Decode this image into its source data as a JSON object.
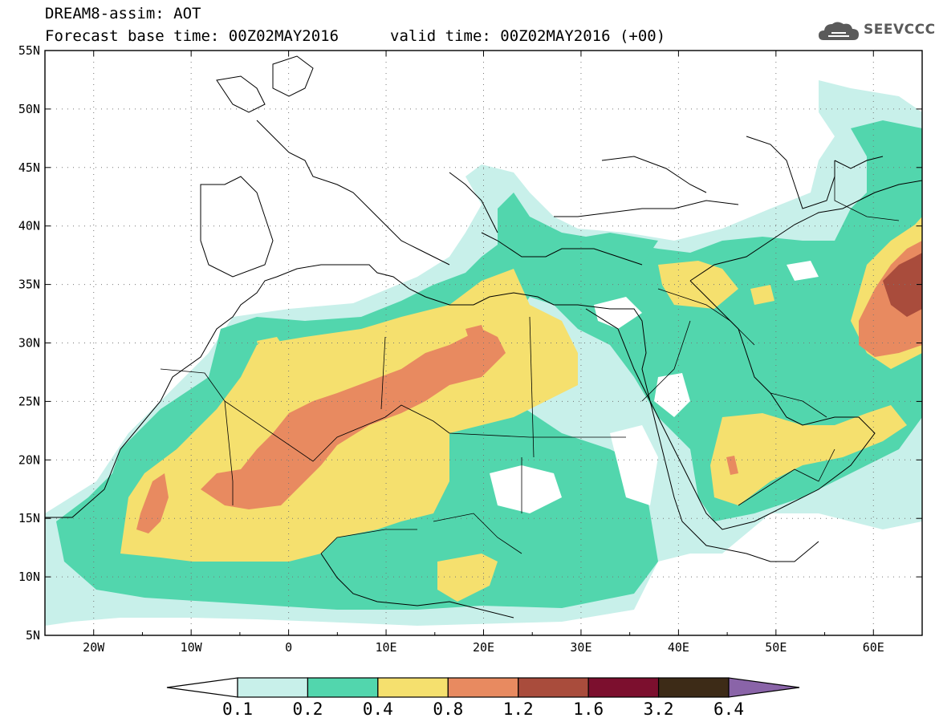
{
  "header": {
    "line1": "DREAM8-assim: AOT",
    "line2": "Forecast base time: 00Z02MAY2016",
    "line3": "valid time: 00Z02MAY2016 (+00)"
  },
  "logo": {
    "text": "SEEVCCC",
    "icon": "cloud-icon"
  },
  "map": {
    "lon_range": [
      -25,
      65
    ],
    "lat_range": [
      5,
      55
    ],
    "lat_labels": [
      "5N",
      "10N",
      "15N",
      "20N",
      "25N",
      "30N",
      "35N",
      "40N",
      "45N",
      "50N",
      "55N"
    ],
    "lon_labels": [
      "20W",
      "10W",
      "0",
      "10E",
      "20E",
      "30E",
      "40E",
      "50E",
      "60E"
    ],
    "grid": "dotted"
  },
  "colorbar": {
    "labels": [
      "0.1",
      "0.2",
      "0.4",
      "0.8",
      "1.2",
      "1.6",
      "3.2",
      "6.4"
    ],
    "colors": [
      "#c8f0ea",
      "#52d6ad",
      "#f5e06e",
      "#e88a60",
      "#a94c3c",
      "#7c0f2e",
      "#3d2b17"
    ],
    "over_color": "#8a64a8",
    "under_color": "#ffffff"
  },
  "colors": {
    "c1": "#c8f0ea",
    "c2": "#52d6ad",
    "c3": "#f5e06e",
    "c4": "#e88a60",
    "c5": "#a94c3c"
  }
}
